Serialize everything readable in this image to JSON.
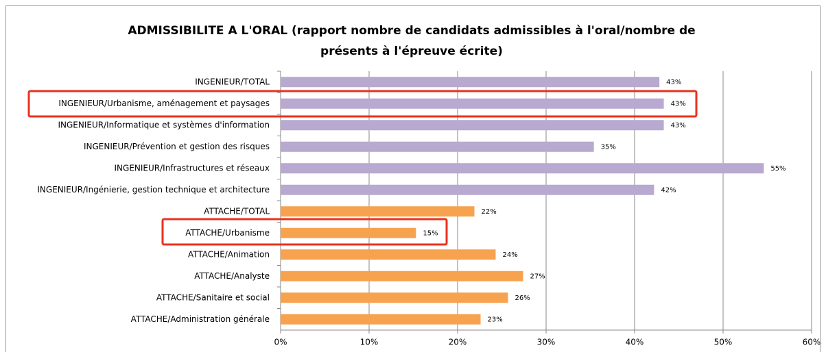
{
  "chart_data": {
    "type": "barh",
    "title": "ADMISSIBILITE A L'ORAL (rapport nombre de candidats admissibles à l'oral/nombre de présents à l'épreuve écrite)",
    "categories": [
      "INGENIEUR/TOTAL",
      "INGENIEUR/Urbanisme, aménagement et paysages",
      "INGENIEUR/Informatique et systèmes d'information",
      "INGENIEUR/Prévention et gestion des risques",
      "INGENIEUR/Infrastructures et réseaux",
      "INGENIEUR/Ingénierie, gestion technique et architecture",
      "ATTACHE/TOTAL",
      "ATTACHE/Urbanisme",
      "ATTACHE/Animation",
      "ATTACHE/Analyste",
      "ATTACHE/Sanitaire et social",
      "ATTACHE/Administration générale"
    ],
    "values": [
      42.8,
      43.3,
      43.3,
      35.4,
      54.6,
      42.2,
      21.9,
      15.3,
      24.3,
      27.4,
      25.7,
      22.6
    ],
    "value_labels": [
      "43%",
      "43%",
      "43%",
      "35%",
      "55%",
      "42%",
      "22%",
      "15%",
      "24%",
      "27%",
      "26%",
      "23%"
    ],
    "colors": [
      "#b8a9d0",
      "#b8a9d0",
      "#b8a9d0",
      "#b8a9d0",
      "#b8a9d0",
      "#b8a9d0",
      "#f7a24f",
      "#f7a24f",
      "#f7a24f",
      "#f7a24f",
      "#f7a24f",
      "#f7a24f"
    ],
    "xlim": [
      0,
      60
    ],
    "xticks": [
      {
        "value": 0,
        "label": "0%"
      },
      {
        "value": 10,
        "label": "10%"
      },
      {
        "value": 20,
        "label": "20%"
      },
      {
        "value": 30,
        "label": "30%"
      },
      {
        "value": 40,
        "label": "40%"
      },
      {
        "value": 50,
        "label": "50%"
      },
      {
        "value": 60,
        "label": "60%"
      }
    ],
    "grid": true
  }
}
